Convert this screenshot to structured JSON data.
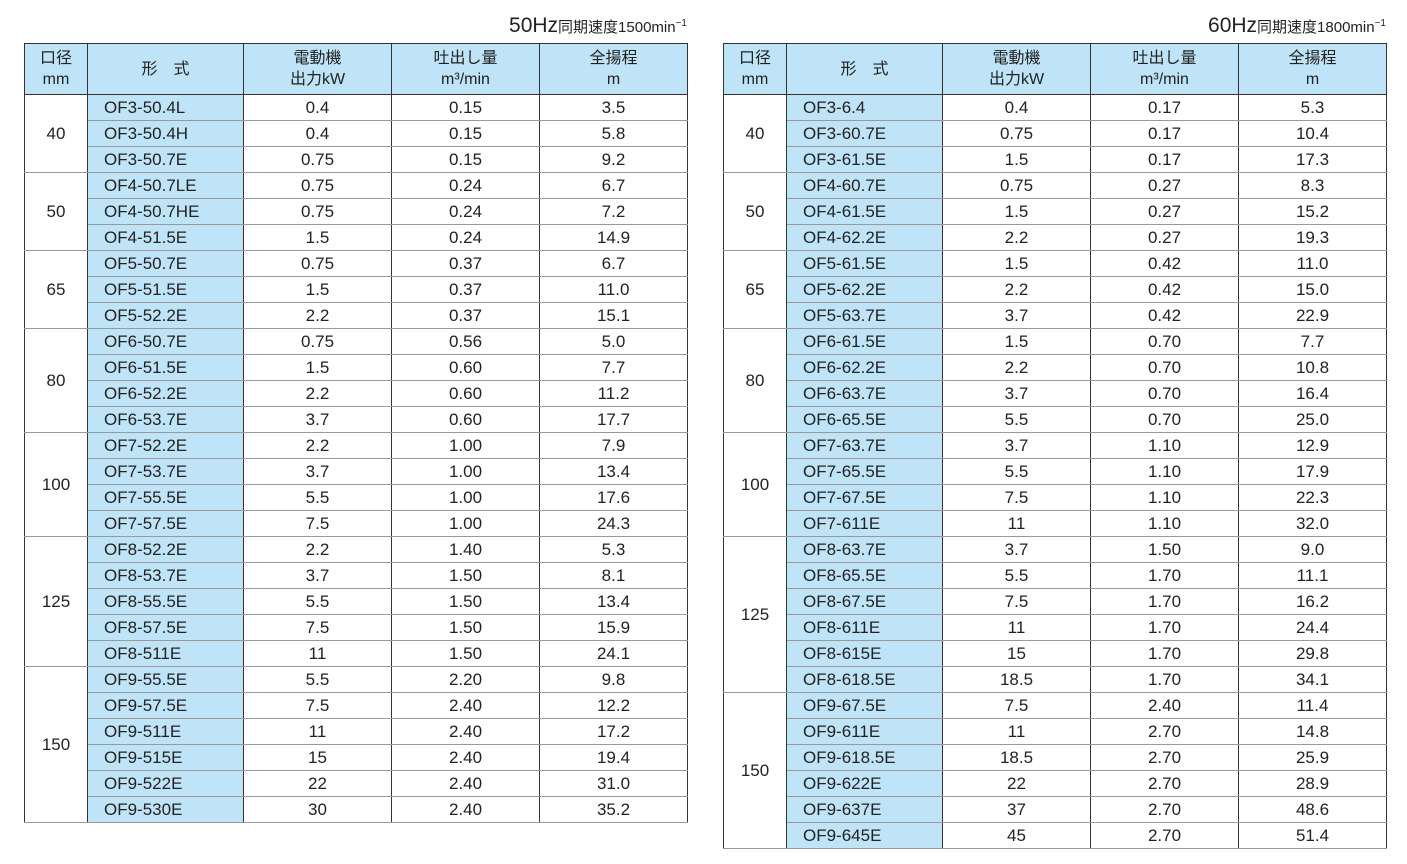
{
  "headers": {
    "size": [
      "口径",
      "mm"
    ],
    "model": "形　式",
    "kw": [
      "電動機",
      "出力kW"
    ],
    "flow": [
      "吐出し量",
      "m³/min"
    ],
    "head": [
      "全揚程",
      "m"
    ]
  },
  "tables": [
    {
      "hz": "50Hz",
      "speed": "同期速度1500min",
      "sup": "−1",
      "groups": [
        {
          "size": "40",
          "rows": [
            [
              "OF3-50.4L",
              "0.4",
              "0.15",
              "3.5"
            ],
            [
              "OF3-50.4H",
              "0.4",
              "0.15",
              "5.8"
            ],
            [
              "OF3-50.7E",
              "0.75",
              "0.15",
              "9.2"
            ]
          ]
        },
        {
          "size": "50",
          "rows": [
            [
              "OF4-50.7LE",
              "0.75",
              "0.24",
              "6.7"
            ],
            [
              "OF4-50.7HE",
              "0.75",
              "0.24",
              "7.2"
            ],
            [
              "OF4-51.5E",
              "1.5",
              "0.24",
              "14.9"
            ]
          ]
        },
        {
          "size": "65",
          "rows": [
            [
              "OF5-50.7E",
              "0.75",
              "0.37",
              "6.7"
            ],
            [
              "OF5-51.5E",
              "1.5",
              "0.37",
              "11.0"
            ],
            [
              "OF5-52.2E",
              "2.2",
              "0.37",
              "15.1"
            ]
          ]
        },
        {
          "size": "80",
          "rows": [
            [
              "OF6-50.7E",
              "0.75",
              "0.56",
              "5.0"
            ],
            [
              "OF6-51.5E",
              "1.5",
              "0.60",
              "7.7"
            ],
            [
              "OF6-52.2E",
              "2.2",
              "0.60",
              "11.2"
            ],
            [
              "OF6-53.7E",
              "3.7",
              "0.60",
              "17.7"
            ]
          ]
        },
        {
          "size": "100",
          "rows": [
            [
              "OF7-52.2E",
              "2.2",
              "1.00",
              "7.9"
            ],
            [
              "OF7-53.7E",
              "3.7",
              "1.00",
              "13.4"
            ],
            [
              "OF7-55.5E",
              "5.5",
              "1.00",
              "17.6"
            ],
            [
              "OF7-57.5E",
              "7.5",
              "1.00",
              "24.3"
            ]
          ]
        },
        {
          "size": "125",
          "rows": [
            [
              "OF8-52.2E",
              "2.2",
              "1.40",
              "5.3"
            ],
            [
              "OF8-53.7E",
              "3.7",
              "1.50",
              "8.1"
            ],
            [
              "OF8-55.5E",
              "5.5",
              "1.50",
              "13.4"
            ],
            [
              "OF8-57.5E",
              "7.5",
              "1.50",
              "15.9"
            ],
            [
              "OF8-511E",
              "11",
              "1.50",
              "24.1"
            ]
          ]
        },
        {
          "size": "150",
          "rows": [
            [
              "OF9-55.5E",
              "5.5",
              "2.20",
              "9.8"
            ],
            [
              "OF9-57.5E",
              "7.5",
              "2.40",
              "12.2"
            ],
            [
              "OF9-511E",
              "11",
              "2.40",
              "17.2"
            ],
            [
              "OF9-515E",
              "15",
              "2.40",
              "19.4"
            ],
            [
              "OF9-522E",
              "22",
              "2.40",
              "31.0"
            ],
            [
              "OF9-530E",
              "30",
              "2.40",
              "35.2"
            ]
          ]
        }
      ]
    },
    {
      "hz": "60Hz",
      "speed": "同期速度1800min",
      "sup": "−1",
      "groups": [
        {
          "size": "40",
          "rows": [
            [
              "OF3-6.4",
              "0.4",
              "0.17",
              "5.3"
            ],
            [
              "OF3-60.7E",
              "0.75",
              "0.17",
              "10.4"
            ],
            [
              "OF3-61.5E",
              "1.5",
              "0.17",
              "17.3"
            ]
          ]
        },
        {
          "size": "50",
          "rows": [
            [
              "OF4-60.7E",
              "0.75",
              "0.27",
              "8.3"
            ],
            [
              "OF4-61.5E",
              "1.5",
              "0.27",
              "15.2"
            ],
            [
              "OF4-62.2E",
              "2.2",
              "0.27",
              "19.3"
            ]
          ]
        },
        {
          "size": "65",
          "rows": [
            [
              "OF5-61.5E",
              "1.5",
              "0.42",
              "11.0"
            ],
            [
              "OF5-62.2E",
              "2.2",
              "0.42",
              "15.0"
            ],
            [
              "OF5-63.7E",
              "3.7",
              "0.42",
              "22.9"
            ]
          ]
        },
        {
          "size": "80",
          "rows": [
            [
              "OF6-61.5E",
              "1.5",
              "0.70",
              "7.7"
            ],
            [
              "OF6-62.2E",
              "2.2",
              "0.70",
              "10.8"
            ],
            [
              "OF6-63.7E",
              "3.7",
              "0.70",
              "16.4"
            ],
            [
              "OF6-65.5E",
              "5.5",
              "0.70",
              "25.0"
            ]
          ]
        },
        {
          "size": "100",
          "rows": [
            [
              "OF7-63.7E",
              "3.7",
              "1.10",
              "12.9"
            ],
            [
              "OF7-65.5E",
              "5.5",
              "1.10",
              "17.9"
            ],
            [
              "OF7-67.5E",
              "7.5",
              "1.10",
              "22.3"
            ],
            [
              "OF7-611E",
              "11",
              "1.10",
              "32.0"
            ]
          ]
        },
        {
          "size": "125",
          "rows": [
            [
              "OF8-63.7E",
              "3.7",
              "1.50",
              "9.0"
            ],
            [
              "OF8-65.5E",
              "5.5",
              "1.70",
              "11.1"
            ],
            [
              "OF8-67.5E",
              "7.5",
              "1.70",
              "16.2"
            ],
            [
              "OF8-611E",
              "11",
              "1.70",
              "24.4"
            ],
            [
              "OF8-615E",
              "15",
              "1.70",
              "29.8"
            ],
            [
              "OF8-618.5E",
              "18.5",
              "1.70",
              "34.1"
            ]
          ]
        },
        {
          "size": "150",
          "rows": [
            [
              "OF9-67.5E",
              "7.5",
              "2.40",
              "11.4"
            ],
            [
              "OF9-611E",
              "11",
              "2.70",
              "14.8"
            ],
            [
              "OF9-618.5E",
              "18.5",
              "2.70",
              "25.9"
            ],
            [
              "OF9-622E",
              "22",
              "2.70",
              "28.9"
            ],
            [
              "OF9-637E",
              "37",
              "2.70",
              "48.6"
            ],
            [
              "OF9-645E",
              "45",
              "2.70",
              "51.4"
            ]
          ]
        }
      ]
    }
  ]
}
